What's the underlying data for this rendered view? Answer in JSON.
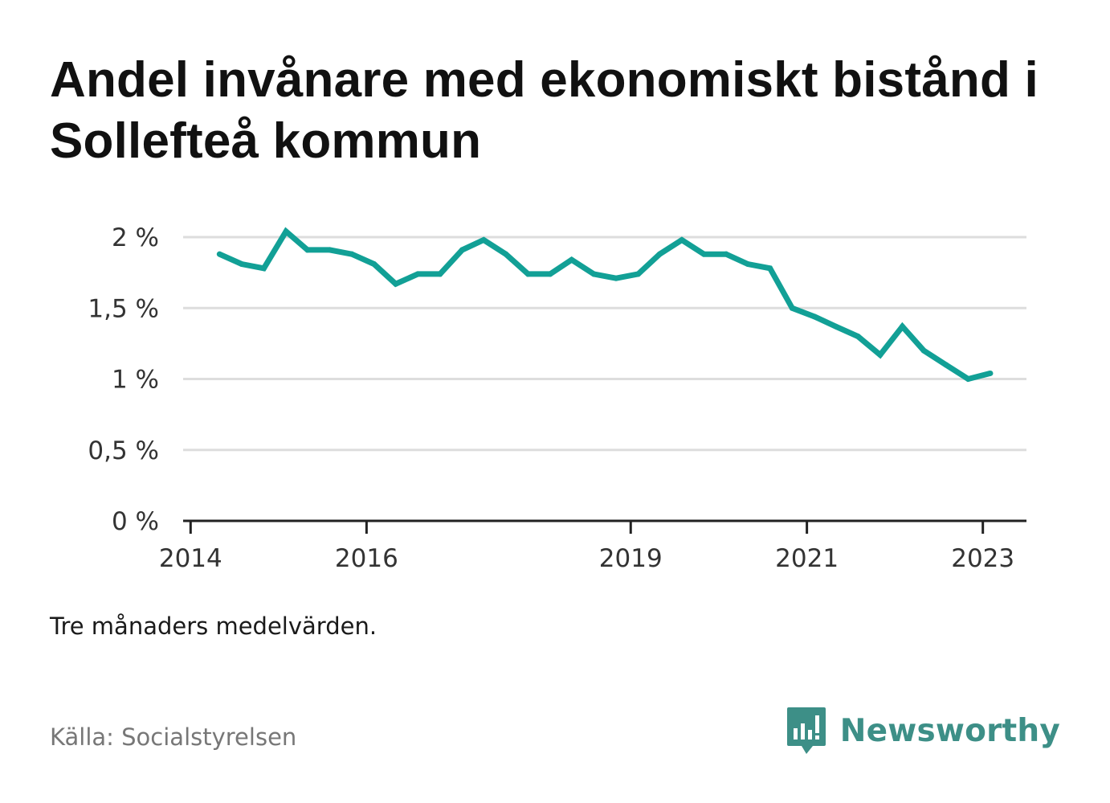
{
  "title": "Andel invånare med ekonomiskt bistånd i Sollefteå kommun",
  "note": "Tre månaders medelvärden.",
  "source": "Källa: Socialstyrelsen",
  "brand": {
    "name": "Newsworthy",
    "icon": "newsworthy-chart-logo-icon",
    "color": "#3d8f87"
  },
  "colors": {
    "line": "#12a096",
    "grid": "#dddddd",
    "axis": "#222222"
  },
  "chart_data": {
    "type": "line",
    "title": "Andel invånare med ekonomiskt bistånd i Sollefteå kommun",
    "xlabel": "",
    "ylabel": "",
    "ylim": [
      0,
      2
    ],
    "xlim": [
      "2013-12-01",
      "2023-07-01"
    ],
    "y_ticks": [
      {
        "value": 0,
        "label": "0 %"
      },
      {
        "value": 0.5,
        "label": "0,5 %"
      },
      {
        "value": 1,
        "label": "1 %"
      },
      {
        "value": 1.5,
        "label": "1,5 %"
      },
      {
        "value": 2,
        "label": "2 %"
      }
    ],
    "x_ticks": [
      {
        "value": "2014-01-01",
        "label": "2014"
      },
      {
        "value": "2016-01-01",
        "label": "2016"
      },
      {
        "value": "2019-01-01",
        "label": "2019"
      },
      {
        "value": "2021-01-01",
        "label": "2021"
      },
      {
        "value": "2023-01-01",
        "label": "2023"
      }
    ],
    "grid": true,
    "legend": "none",
    "series": [
      {
        "points": [
          {
            "x": "2014-05-01",
            "y": 1.88
          },
          {
            "x": "2014-08-01",
            "y": 1.81
          },
          {
            "x": "2014-11-01",
            "y": 1.78
          },
          {
            "x": "2015-02-01",
            "y": 2.04
          },
          {
            "x": "2015-05-01",
            "y": 1.91
          },
          {
            "x": "2015-08-01",
            "y": 1.91
          },
          {
            "x": "2015-11-01",
            "y": 1.88
          },
          {
            "x": "2016-02-01",
            "y": 1.81
          },
          {
            "x": "2016-05-01",
            "y": 1.67
          },
          {
            "x": "2016-08-01",
            "y": 1.74
          },
          {
            "x": "2016-11-01",
            "y": 1.74
          },
          {
            "x": "2017-02-01",
            "y": 1.91
          },
          {
            "x": "2017-05-01",
            "y": 1.98
          },
          {
            "x": "2017-08-01",
            "y": 1.88
          },
          {
            "x": "2017-11-01",
            "y": 1.74
          },
          {
            "x": "2018-02-01",
            "y": 1.74
          },
          {
            "x": "2018-05-01",
            "y": 1.84
          },
          {
            "x": "2018-08-01",
            "y": 1.74
          },
          {
            "x": "2018-11-01",
            "y": 1.71
          },
          {
            "x": "2019-02-01",
            "y": 1.74
          },
          {
            "x": "2019-05-01",
            "y": 1.88
          },
          {
            "x": "2019-08-01",
            "y": 1.98
          },
          {
            "x": "2019-11-01",
            "y": 1.88
          },
          {
            "x": "2020-02-01",
            "y": 1.88
          },
          {
            "x": "2020-05-01",
            "y": 1.81
          },
          {
            "x": "2020-08-01",
            "y": 1.78
          },
          {
            "x": "2020-11-01",
            "y": 1.5
          },
          {
            "x": "2021-02-01",
            "y": 1.44
          },
          {
            "x": "2021-05-01",
            "y": 1.37
          },
          {
            "x": "2021-08-01",
            "y": 1.3
          },
          {
            "x": "2021-11-01",
            "y": 1.17
          },
          {
            "x": "2022-02-01",
            "y": 1.37
          },
          {
            "x": "2022-05-01",
            "y": 1.2
          },
          {
            "x": "2022-08-01",
            "y": 1.1
          },
          {
            "x": "2022-11-01",
            "y": 1.0
          },
          {
            "x": "2023-02-01",
            "y": 1.04
          }
        ]
      }
    ]
  }
}
